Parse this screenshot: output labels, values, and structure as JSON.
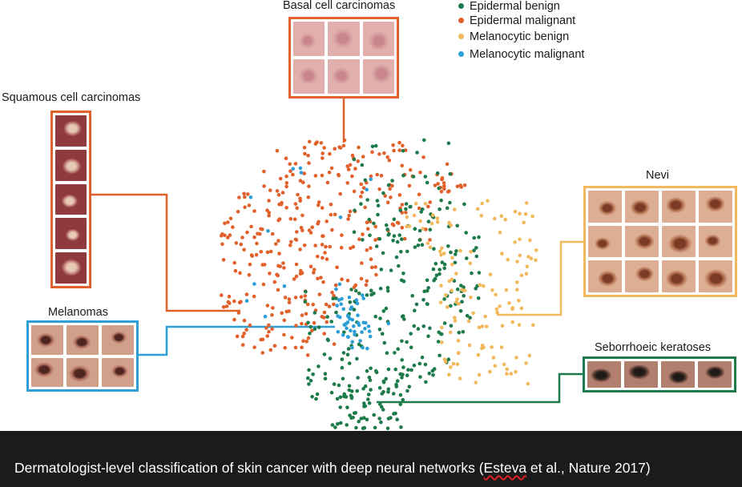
{
  "caption": {
    "before": "Dermatologist-level classification of skin cancer with deep neural networks (",
    "highlight": "Esteva",
    "after": " et al., Nature 2017)"
  },
  "legend": [
    {
      "label": "Epidermal benign",
      "color": "#1d7a4a"
    },
    {
      "label": "Epidermal malignant",
      "color": "#e0612b"
    },
    {
      "label": "Melanocytic benign",
      "color": "#f2b95c"
    },
    {
      "label": "Melanocytic malignant",
      "color": "#2e9fd6"
    }
  ],
  "groups": {
    "basal": {
      "label": "Basal cell carcinomas",
      "color": "#e0612b"
    },
    "squamous": {
      "label": "Squamous cell carcinomas",
      "color": "#e0612b"
    },
    "melanomas": {
      "label": "Melanomas",
      "color": "#2e9fd6"
    },
    "nevi": {
      "label": "Nevi",
      "color": "#f2b95c"
    },
    "seborrhoeic": {
      "label": "Seborrhoeic keratoses",
      "color": "#1d7a4a"
    }
  }
}
